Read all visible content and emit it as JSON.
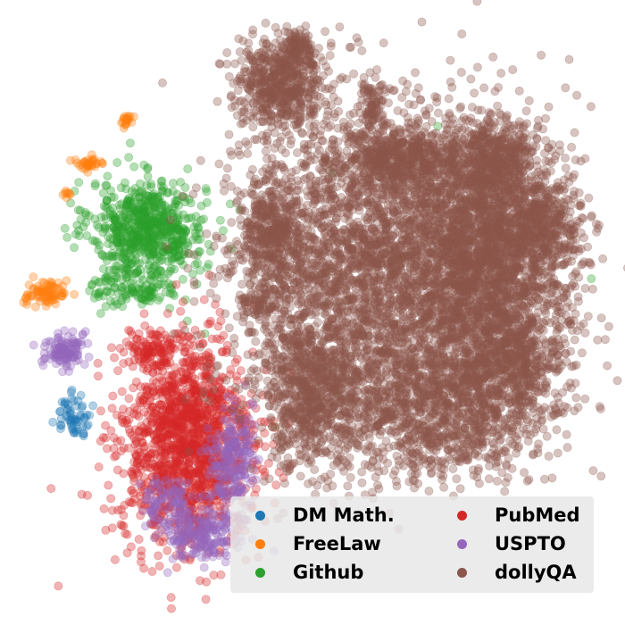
{
  "chart_data": {
    "type": "scatter",
    "title": "",
    "xlabel": "",
    "ylabel": "",
    "axes_visible": false,
    "grid": false,
    "legend_placement": "lower-right",
    "legend_columns": 2,
    "point_alpha": 0.35,
    "series": [
      {
        "name": "DM Math.",
        "color": "#1f77b4",
        "clusters": [
          {
            "center": [
              -52.0,
              -24.5
            ],
            "spread": [
              2.0,
              2.4
            ],
            "count": 60
          }
        ]
      },
      {
        "name": "FreeLaw",
        "color": "#ff7f0e",
        "clusters": [
          {
            "center": [
              -39.5,
              45.5
            ],
            "spread": [
              1.0,
              0.7
            ],
            "count": 20
          },
          {
            "center": [
              -48.5,
              35.0
            ],
            "spread": [
              2.0,
              0.8
            ],
            "count": 35
          },
          {
            "center": [
              -53.5,
              28.0
            ],
            "spread": [
              0.6,
              0.5
            ],
            "count": 8
          },
          {
            "center": [
              -58.0,
              4.5
            ],
            "spread": [
              2.4,
              1.6
            ],
            "count": 80
          }
        ]
      },
      {
        "name": "Github",
        "color": "#2ca02c",
        "clusters": [
          {
            "center": [
              -35.0,
              20.0
            ],
            "spread": [
              6.5,
              5.5
            ],
            "count": 650
          },
          {
            "center": [
              -38.0,
              6.0
            ],
            "spread": [
              5.0,
              2.5
            ],
            "count": 120
          }
        ],
        "outliers": [
          [
            -30.0,
            1.0
          ],
          [
            -26.0,
            -2.0
          ],
          [
            -22.0,
            -5.0
          ],
          [
            -21.0,
            -11.0
          ],
          [
            -33.0,
            6.0
          ],
          [
            31.0,
            44.0
          ],
          [
            7.0,
            33.0
          ],
          [
            30.0,
            29.0
          ],
          [
            41.0,
            26.0
          ],
          [
            66.0,
            8.0
          ],
          [
            50.0,
            4.0
          ],
          [
            8.0,
            -19.0
          ],
          [
            -6.0,
            -27.0
          ],
          [
            -39.0,
            40.0
          ],
          [
            -29.0,
            4.0
          ]
        ]
      },
      {
        "name": "PubMed",
        "color": "#d62728",
        "clusters": [
          {
            "center": [
              -26.0,
              -31.0
            ],
            "spread": [
              7.5,
              12.0
            ],
            "count": 1500
          },
          {
            "center": [
              -34.0,
              -8.5
            ],
            "spread": [
              2.8,
              2.2
            ],
            "count": 90
          }
        ]
      },
      {
        "name": "USPTO",
        "color": "#9467bd",
        "clusters": [
          {
            "center": [
              -54.0,
              -9.0
            ],
            "spread": [
              2.2,
              2.2
            ],
            "count": 120
          },
          {
            "center": [
              -23.0,
              -52.0
            ],
            "spread": [
              4.5,
              3.2
            ],
            "count": 200
          },
          {
            "center": [
              -16.0,
              -35.0
            ],
            "spread": [
              2.5,
              6.0
            ],
            "count": 200
          },
          {
            "center": [
              -31.0,
              -44.0
            ],
            "spread": [
              3.0,
              2.5
            ],
            "count": 80
          }
        ]
      },
      {
        "name": "dollyQA",
        "color": "#8c564b",
        "clusters": [
          {
            "center": [
              -4.5,
              54.5
            ],
            "spread": [
              5.0,
              5.0
            ],
            "count": 600
          },
          {
            "center": [
              -0.5,
              62.5
            ],
            "spread": [
              2.0,
              1.8
            ],
            "count": 80
          },
          {
            "center": [
              16.5,
              49.0
            ],
            "spread": [
              1.6,
              2.8
            ],
            "count": 80
          },
          {
            "center": [
              16.0,
              10.0
            ],
            "spread": [
              16.0,
              18.0
            ],
            "count": 3200
          },
          {
            "center": [
              42.0,
              12.0
            ],
            "spread": [
              9.0,
              16.0
            ],
            "count": 2300
          },
          {
            "center": [
              44.0,
              36.0
            ],
            "spread": [
              4.5,
              4.5
            ],
            "count": 350
          },
          {
            "center": [
              55.0,
              20.0
            ],
            "spread": [
              4.5,
              6.0
            ],
            "count": 350
          },
          {
            "center": [
              23.0,
              36.0
            ],
            "spread": [
              8.0,
              4.0
            ],
            "count": 550
          },
          {
            "center": [
              3.0,
              -20.0
            ],
            "spread": [
              6.0,
              9.0
            ],
            "count": 700
          },
          {
            "center": [
              32.0,
              -23.0
            ],
            "spread": [
              12.0,
              8.0
            ],
            "count": 1000
          },
          {
            "center": [
              48.0,
              -12.0
            ],
            "spread": [
              6.0,
              6.0
            ],
            "count": 400
          },
          {
            "center": [
              -7.0,
              18.0
            ],
            "spread": [
              3.2,
              6.0
            ],
            "count": 350
          },
          {
            "center": [
              -10.0,
              2.0
            ],
            "spread": [
              2.0,
              1.5
            ],
            "count": 60
          }
        ]
      }
    ]
  },
  "legend": {
    "items": [
      {
        "label": "DM Math.",
        "color": "#1f77b4"
      },
      {
        "label": "PubMed",
        "color": "#d62728"
      },
      {
        "label": "FreeLaw",
        "color": "#ff7f0e"
      },
      {
        "label": "USPTO",
        "color": "#9467bd"
      },
      {
        "label": "Github",
        "color": "#2ca02c"
      },
      {
        "label": "dollyQA",
        "color": "#8c564b"
      }
    ]
  }
}
